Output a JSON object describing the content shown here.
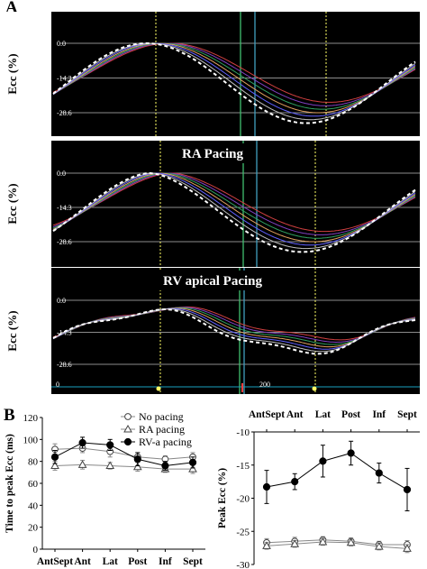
{
  "panel_a": {
    "letter": "A",
    "y_axis_label": "Ecc   (%)",
    "tick_labels": [
      "0.0",
      "-14.3",
      "-28.6"
    ],
    "strips": [
      {
        "title": ""
      },
      {
        "title": "RA Pacing"
      },
      {
        "title": "RV apical Pacing"
      }
    ],
    "bottom_ticks": [
      "0",
      "200"
    ],
    "colors": {
      "background": "#000000",
      "grid": "#ffffff",
      "traces": [
        "#d04040",
        "#8040c0",
        "#30a060",
        "#e0a060",
        "#6060ff",
        "#c0c0c0"
      ],
      "average": "#ffffff",
      "markers": "#ffff66"
    }
  },
  "panel_b": {
    "letter": "B",
    "colors": {
      "markers": "#000000",
      "error_bars": "#000000"
    }
  },
  "chart_data": [
    {
      "type": "line",
      "ylabel": "Time to peak Ecc (ms)",
      "xlabel": "",
      "categories": [
        "AntSept",
        "Ant",
        "Lat",
        "Post",
        "Inf",
        "Sept"
      ],
      "ylim": [
        0,
        120
      ],
      "yticks": [
        "0",
        "20",
        "40",
        "60",
        "80",
        "100",
        "120"
      ],
      "legend_position": "top-right",
      "series": [
        {
          "name": "No pacing",
          "marker": "open-circle",
          "values": [
            91,
            92,
            89,
            84,
            82,
            84
          ],
          "errors": [
            5,
            4,
            5,
            4,
            3,
            4
          ]
        },
        {
          "name": "RA pacing",
          "marker": "open-triangle",
          "values": [
            76,
            77,
            76,
            75,
            73,
            73
          ],
          "errors": [
            4,
            4,
            3,
            4,
            3,
            4
          ]
        },
        {
          "name": "RV-a pacing",
          "marker": "filled-circle",
          "values": [
            84,
            97,
            95,
            82,
            76,
            79
          ],
          "errors": [
            6,
            5,
            5,
            6,
            4,
            5
          ]
        }
      ]
    },
    {
      "type": "line",
      "ylabel": "Peak Ecc (%)",
      "xlabel": "",
      "x_axis_position": "top",
      "categories": [
        "AntSept",
        "Ant",
        "Lat",
        "Post",
        "Inf",
        "Sept"
      ],
      "ylim": [
        -30,
        -10
      ],
      "yticks": [
        "-10",
        "-15",
        "-20",
        "-25",
        "-30"
      ],
      "series": [
        {
          "name": "RV-a pacing",
          "marker": "filled-circle",
          "values": [
            -18.3,
            -17.5,
            -14.4,
            -13.2,
            -16.2,
            -18.7
          ],
          "errors": [
            2.5,
            1.2,
            2.4,
            1.8,
            1.5,
            3.2
          ]
        },
        {
          "name": "No pacing",
          "marker": "open-circle",
          "values": [
            -26.7,
            -26.5,
            -26.3,
            -26.5,
            -27.0,
            -27.0
          ],
          "errors": [
            0.6,
            0.6,
            0.5,
            0.5,
            0.5,
            0.6
          ]
        },
        {
          "name": "RA pacing",
          "marker": "open-triangle",
          "values": [
            -27.2,
            -26.9,
            -26.6,
            -26.7,
            -27.3,
            -27.6
          ],
          "errors": [
            0.5,
            0.5,
            0.5,
            0.5,
            0.5,
            0.6
          ]
        }
      ]
    }
  ]
}
